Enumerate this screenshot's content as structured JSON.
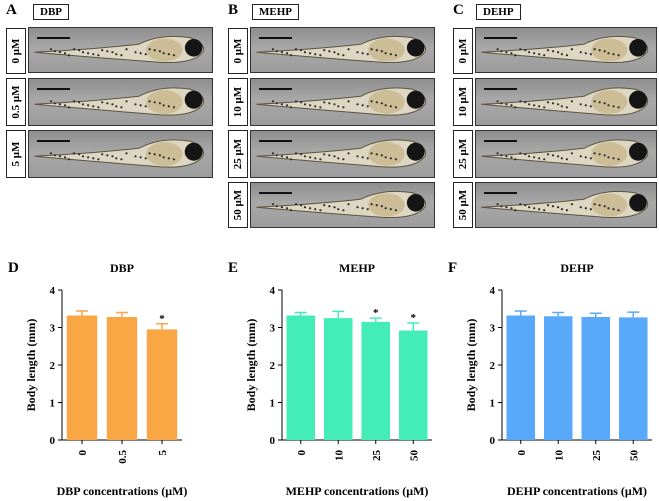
{
  "image_panels": {
    "A": {
      "letter": "A",
      "compound": "DBP",
      "rows": [
        "0 μM",
        "0.5 μM",
        "5 μM"
      ]
    },
    "B": {
      "letter": "B",
      "compound": "MEHP",
      "rows": [
        "0 μM",
        "10 μM",
        "25 μM",
        "50 μM"
      ]
    },
    "C": {
      "letter": "C",
      "compound": "DEHP",
      "rows": [
        "0 μM",
        "10 μM",
        "25 μM",
        "50 μM"
      ]
    }
  },
  "chart_data": [
    {
      "panel": "D",
      "type": "bar",
      "title": "DBP",
      "xlabel": "DBP concentrations (μM)",
      "ylabel": "Body length (mm)",
      "categories": [
        "0",
        "0.5",
        "5"
      ],
      "values": [
        3.32,
        3.28,
        2.95
      ],
      "errors": [
        0.12,
        0.12,
        0.15
      ],
      "significance": [
        "",
        "",
        "*"
      ],
      "ylim": [
        0,
        4
      ],
      "yticks": [
        "0",
        "1",
        "2",
        "3",
        "4"
      ],
      "color": "#F9A645"
    },
    {
      "panel": "E",
      "type": "bar",
      "title": "MEHP",
      "xlabel": "MEHP concentrations (μM)",
      "ylabel": "Body length (mm)",
      "categories": [
        "0",
        "10",
        "25",
        "50"
      ],
      "values": [
        3.32,
        3.25,
        3.15,
        2.92
      ],
      "errors": [
        0.08,
        0.18,
        0.1,
        0.2
      ],
      "significance": [
        "",
        "",
        "*",
        "*"
      ],
      "ylim": [
        0,
        4
      ],
      "yticks": [
        "0",
        "1",
        "2",
        "3",
        "4"
      ],
      "color": "#44EDB8"
    },
    {
      "panel": "F",
      "type": "bar",
      "title": "DEHP",
      "xlabel": "DEHP concentrations (μM)",
      "ylabel": "Body length (mm)",
      "categories": [
        "0",
        "10",
        "25",
        "50"
      ],
      "values": [
        3.32,
        3.3,
        3.28,
        3.27
      ],
      "errors": [
        0.12,
        0.1,
        0.1,
        0.14
      ],
      "significance": [
        "",
        "",
        "",
        ""
      ],
      "ylim": [
        0,
        4
      ],
      "yticks": [
        "0",
        "1",
        "2",
        "3",
        "4"
      ],
      "color": "#58A9FA"
    }
  ]
}
